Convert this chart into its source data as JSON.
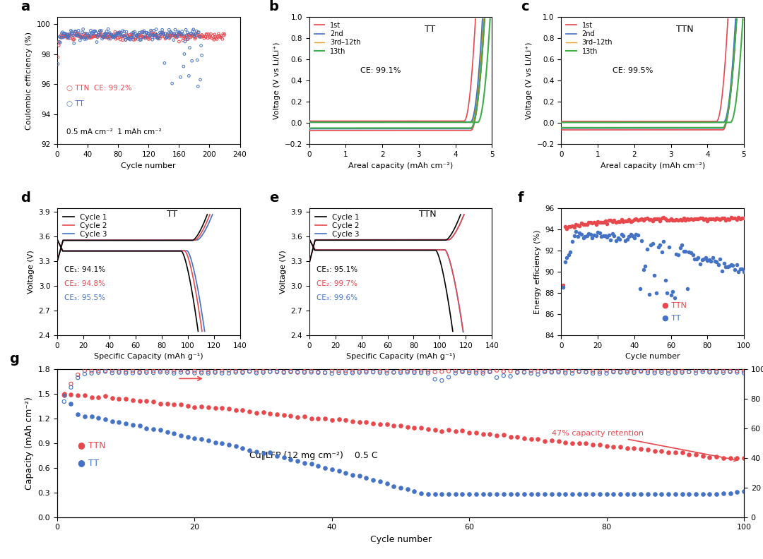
{
  "panel_a": {
    "ttn_ce_text": "TTN  CE: 99.2%",
    "tt_text": "TT",
    "condition_text": "0.5 mA cm⁻²  1 mAh cm⁻²",
    "ylim": [
      92,
      100.5
    ],
    "xlim": [
      0,
      240
    ],
    "yticks": [
      92,
      94,
      96,
      98,
      100
    ],
    "xticks": [
      0,
      40,
      80,
      120,
      160,
      200,
      240
    ],
    "ttn_color": "#e8474c",
    "tt_color": "#4472c4"
  },
  "panel_b": {
    "title": "TT",
    "ce_text": "CE: 99.1%",
    "ylim": [
      -0.2,
      1.0
    ],
    "xlim": [
      0,
      5
    ],
    "yticks": [
      -0.2,
      0.0,
      0.2,
      0.4,
      0.6,
      0.8,
      1.0
    ],
    "xticks": [
      0,
      1,
      2,
      3,
      4,
      5
    ],
    "colors": [
      "#e8474c",
      "#4472c4",
      "#e6a020",
      "#3fae49"
    ],
    "legend": [
      "1st",
      "2nd",
      "3rd–12th",
      "13th"
    ]
  },
  "panel_c": {
    "title": "TTN",
    "ce_text": "CE: 99.5%",
    "ylim": [
      -0.2,
      1.0
    ],
    "xlim": [
      0,
      5
    ],
    "yticks": [
      -0.2,
      0.0,
      0.2,
      0.4,
      0.6,
      0.8,
      1.0
    ],
    "xticks": [
      0,
      1,
      2,
      3,
      4,
      5
    ],
    "colors": [
      "#e8474c",
      "#4472c4",
      "#e6a020",
      "#3fae49"
    ],
    "legend": [
      "1st",
      "2nd",
      "3rd–12th",
      "13th"
    ]
  },
  "panel_d": {
    "title": "TT",
    "ce1_text": "CE₁: 94.1%",
    "ce2_text": "CE₂: 94.8%",
    "ce3_text": "CE₃: 95.5%",
    "ylim": [
      2.4,
      3.95
    ],
    "xlim": [
      0,
      140
    ],
    "yticks": [
      2.4,
      2.7,
      3.0,
      3.3,
      3.6,
      3.9
    ],
    "xticks": [
      0,
      20,
      40,
      60,
      80,
      100,
      120,
      140
    ],
    "colors": [
      "#000000",
      "#e8474c",
      "#4472c4"
    ],
    "legend": [
      "Cycle 1",
      "Cycle 2",
      "Cycle 3"
    ]
  },
  "panel_e": {
    "title": "TTN",
    "ce1_text": "CE₁: 95.1%",
    "ce2_text": "CE₂: 99.7%",
    "ce3_text": "CE₃: 99.6%",
    "ylim": [
      2.4,
      3.95
    ],
    "xlim": [
      0,
      140
    ],
    "yticks": [
      2.4,
      2.7,
      3.0,
      3.3,
      3.6,
      3.9
    ],
    "xticks": [
      0,
      20,
      40,
      60,
      80,
      100,
      120,
      140
    ],
    "colors": [
      "#000000",
      "#e8474c",
      "#4472c4"
    ],
    "legend": [
      "Cycle 1",
      "Cycle 2",
      "Cycle 3"
    ]
  },
  "panel_f": {
    "ylim": [
      84,
      96
    ],
    "xlim": [
      0,
      100
    ],
    "yticks": [
      84,
      86,
      88,
      90,
      92,
      94,
      96
    ],
    "xticks": [
      0,
      20,
      40,
      60,
      80,
      100
    ],
    "ttn_color": "#e8474c",
    "tt_color": "#4472c4"
  },
  "panel_g": {
    "ylim_left": [
      0,
      1.8
    ],
    "ylim_right": [
      0,
      100
    ],
    "xlim": [
      0,
      100
    ],
    "yticks_left": [
      0.0,
      0.3,
      0.6,
      0.9,
      1.2,
      1.5,
      1.8
    ],
    "yticks_right": [
      0,
      20,
      40,
      60,
      80,
      100
    ],
    "xticks": [
      0,
      20,
      40,
      60,
      80,
      100
    ],
    "ttn_color": "#e8474c",
    "tt_color": "#4472c4",
    "annotation": "47% capacity retention",
    "condition": "Cu∥LFP (12 mg cm⁻²)    0.5 C"
  }
}
